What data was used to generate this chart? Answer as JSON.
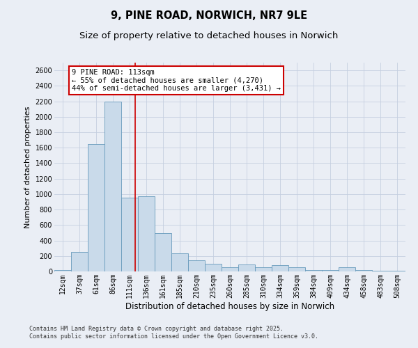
{
  "title": "9, PINE ROAD, NORWICH, NR7 9LE",
  "subtitle": "Size of property relative to detached houses in Norwich",
  "xlabel": "Distribution of detached houses by size in Norwich",
  "ylabel": "Number of detached properties",
  "categories": [
    "12sqm",
    "37sqm",
    "61sqm",
    "86sqm",
    "111sqm",
    "136sqm",
    "161sqm",
    "185sqm",
    "210sqm",
    "235sqm",
    "260sqm",
    "285sqm",
    "310sqm",
    "334sqm",
    "359sqm",
    "384sqm",
    "409sqm",
    "434sqm",
    "458sqm",
    "483sqm",
    "508sqm"
  ],
  "values": [
    20,
    255,
    1650,
    2200,
    950,
    975,
    495,
    235,
    145,
    95,
    55,
    90,
    55,
    85,
    50,
    20,
    20,
    50,
    20,
    10,
    10
  ],
  "bar_color": "#c9daea",
  "bar_edge_color": "#6699bb",
  "grid_color": "#c5cfe0",
  "background_color": "#eaeef5",
  "red_line_color": "#cc0000",
  "red_line_x": 4.35,
  "annotation_text": "9 PINE ROAD: 113sqm\n← 55% of detached houses are smaller (4,270)\n44% of semi-detached houses are larger (3,431) →",
  "annotation_box_facecolor": "#ffffff",
  "annotation_box_edgecolor": "#cc0000",
  "ylim": [
    0,
    2700
  ],
  "yticks": [
    0,
    200,
    400,
    600,
    800,
    1000,
    1200,
    1400,
    1600,
    1800,
    2000,
    2200,
    2400,
    2600
  ],
  "title_fontsize": 10.5,
  "subtitle_fontsize": 9.5,
  "xlabel_fontsize": 8.5,
  "ylabel_fontsize": 8.0,
  "tick_fontsize": 7.0,
  "ann_fontsize": 7.5,
  "footer_fontsize": 6.0,
  "footer_line1": "Contains HM Land Registry data © Crown copyright and database right 2025.",
  "footer_line2": "Contains public sector information licensed under the Open Government Licence v3.0."
}
